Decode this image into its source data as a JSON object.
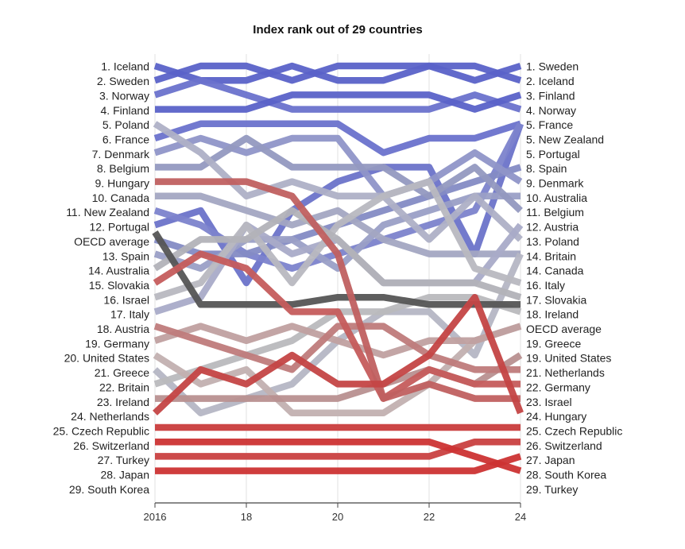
{
  "chart_data": {
    "type": "line",
    "title": "Index rank out of 29 countries",
    "xlabel": "",
    "ylabel": "",
    "x": [
      2016,
      2017,
      2018,
      2019,
      2020,
      2021,
      2022,
      2023,
      2024
    ],
    "x_ticks": [
      "2016",
      "18",
      "20",
      "22",
      "24"
    ],
    "ylim": [
      1,
      29
    ],
    "y_reversed": true,
    "grid": "vertical",
    "left_labels": [
      "1. Iceland",
      "2. Sweden",
      "3. Norway",
      "4. Finland",
      "5. Poland",
      "6. France",
      "7. Denmark",
      "8. Belgium",
      "9. Hungary",
      "10. Canada",
      "11. New Zealand",
      "12. Portugal",
      "OECD average",
      "13. Spain",
      "14. Australia",
      "15. Slovakia",
      "16. Israel",
      "17. Italy",
      "18. Austria",
      "19. Germany",
      "20. United States",
      "21. Greece",
      "22. Britain",
      "23. Ireland",
      "24. Netherlands",
      "25. Czech Republic",
      "26. Switzerland",
      "27. Turkey",
      "28. Japan",
      "29. South Korea"
    ],
    "right_labels": [
      "1. Sweden",
      "2. Iceland",
      "3. Finland",
      "4. Norway",
      "5. France",
      "5. New Zealand",
      "5. Portugal",
      "8. Spain",
      "9. Denmark",
      "10. Australia",
      "11. Belgium",
      "12. Austria",
      "13. Poland",
      "14. Britain",
      "14. Canada",
      "16. Italy",
      "17. Slovakia",
      "18. Ireland",
      "OECD average",
      "19. Greece",
      "19. United States",
      "21. Netherlands",
      "22. Germany",
      "23. Israel",
      "24. Hungary",
      "25. Czech Republic",
      "26. Switzerland",
      "27. Japan",
      "28. South Korea",
      "29. Turkey"
    ],
    "series": [
      {
        "name": "Iceland",
        "color": "#5a62c8",
        "values": [
          1,
          2,
          2,
          1,
          2,
          2,
          1,
          1,
          2
        ]
      },
      {
        "name": "Sweden",
        "color": "#5a62c8",
        "values": [
          2,
          1,
          1,
          2,
          1,
          1,
          1,
          2,
          1
        ]
      },
      {
        "name": "Norway",
        "color": "#6a72cc",
        "values": [
          3,
          2,
          3,
          4,
          4,
          4,
          4,
          3,
          4
        ]
      },
      {
        "name": "Finland",
        "color": "#5a62c8",
        "values": [
          4,
          4,
          4,
          3,
          3,
          3,
          3,
          4,
          3
        ]
      },
      {
        "name": "France",
        "color": "#6a72cc",
        "values": [
          6,
          5,
          5,
          5,
          5,
          7,
          6,
          6,
          5
        ]
      },
      {
        "name": "Portugal",
        "color": "#6b73c9",
        "values": [
          12,
          11,
          16,
          11,
          9,
          8,
          8,
          14,
          5
        ]
      },
      {
        "name": "New Zealand",
        "color": "#7c83cc",
        "values": [
          11,
          12,
          14,
          15,
          14,
          13,
          12,
          11,
          5
        ]
      },
      {
        "name": "Spain",
        "color": "#848bc4",
        "values": [
          13,
          14,
          14,
          13,
          12,
          11,
          10,
          9,
          8
        ]
      },
      {
        "name": "Denmark",
        "color": "#8f95c8",
        "values": [
          7,
          6,
          7,
          6,
          6,
          10,
          9,
          7,
          9
        ]
      },
      {
        "name": "Australia",
        "color": "#9a9fc6",
        "values": [
          14,
          15,
          13,
          13,
          15,
          12,
          11,
          10,
          10
        ]
      },
      {
        "name": "Belgium",
        "color": "#9499c0",
        "values": [
          8,
          8,
          6,
          8,
          8,
          8,
          10,
          8,
          11
        ]
      },
      {
        "name": "Canada",
        "color": "#a3a6c2",
        "values": [
          10,
          10,
          11,
          12,
          11,
          13,
          14,
          14,
          14
        ]
      },
      {
        "name": "Poland",
        "color": "#aeb0c6",
        "values": [
          5,
          7,
          10,
          9,
          10,
          10,
          13,
          10,
          13
        ]
      },
      {
        "name": "Austria",
        "color": "#a9abc8",
        "values": [
          18,
          17,
          12,
          14,
          13,
          16,
          16,
          16,
          12
        ]
      },
      {
        "name": "Britain",
        "color": "#b5b6c4",
        "values": [
          22,
          25,
          24,
          23,
          20,
          18,
          18,
          21,
          14
        ]
      },
      {
        "name": "Italy",
        "color": "#b8b8c0",
        "values": [
          17,
          16,
          12,
          16,
          12,
          10,
          9,
          15,
          16
        ]
      },
      {
        "name": "Slovakia",
        "color": "#b2b2b8",
        "values": [
          15,
          13,
          13,
          11,
          13,
          16,
          16,
          16,
          17
        ]
      },
      {
        "name": "Ireland",
        "color": "#b9b9bd",
        "values": [
          23,
          22,
          21,
          20,
          18,
          18,
          17,
          17,
          18
        ]
      },
      {
        "name": "OECD average",
        "color": "#555555",
        "values": [
          12.5,
          17.5,
          17.5,
          17.5,
          17,
          17,
          17.5,
          17.5,
          17.5
        ]
      },
      {
        "name": "Greece",
        "color": "#c2b0b0",
        "values": [
          21,
          23,
          22,
          25,
          25,
          25,
          23,
          20,
          19
        ]
      },
      {
        "name": "United States",
        "color": "#c0a0a0",
        "values": [
          20,
          19,
          20,
          19,
          20,
          21,
          20,
          20,
          19
        ]
      },
      {
        "name": "Netherlands",
        "color": "#b89090",
        "values": [
          24,
          24,
          24,
          24,
          24,
          23,
          22,
          23,
          21
        ]
      },
      {
        "name": "Germany",
        "color": "#bf7b7b",
        "values": [
          19,
          20,
          21,
          22,
          19,
          19,
          21,
          22,
          22
        ]
      },
      {
        "name": "Israel",
        "color": "#c55c5c",
        "values": [
          16,
          14,
          15,
          18,
          18,
          24,
          22,
          23,
          23
        ]
      },
      {
        "name": "Hungary",
        "color": "#c06060",
        "values": [
          9,
          9,
          9,
          10,
          14,
          24,
          23,
          24,
          24
        ]
      },
      {
        "name": "Czech Republic",
        "color": "#c44444",
        "values": [
          25,
          22,
          23,
          21,
          23,
          23,
          21,
          17,
          25
        ]
      },
      {
        "name": "Switzerland",
        "color": "#c93c3c",
        "values": [
          26,
          26,
          26,
          26,
          26,
          26,
          26,
          26,
          26
        ]
      },
      {
        "name": "Japan",
        "color": "#c94040",
        "values": [
          28,
          28,
          28,
          28,
          28,
          28,
          28,
          27,
          27
        ]
      },
      {
        "name": "Turkey",
        "color": "#cc3333",
        "values": [
          27,
          27,
          27,
          27,
          27,
          27,
          27,
          28,
          29
        ]
      },
      {
        "name": "South Korea",
        "color": "#cc3333",
        "values": [
          29,
          29,
          29,
          29,
          29,
          29,
          29,
          29,
          28
        ]
      }
    ]
  }
}
